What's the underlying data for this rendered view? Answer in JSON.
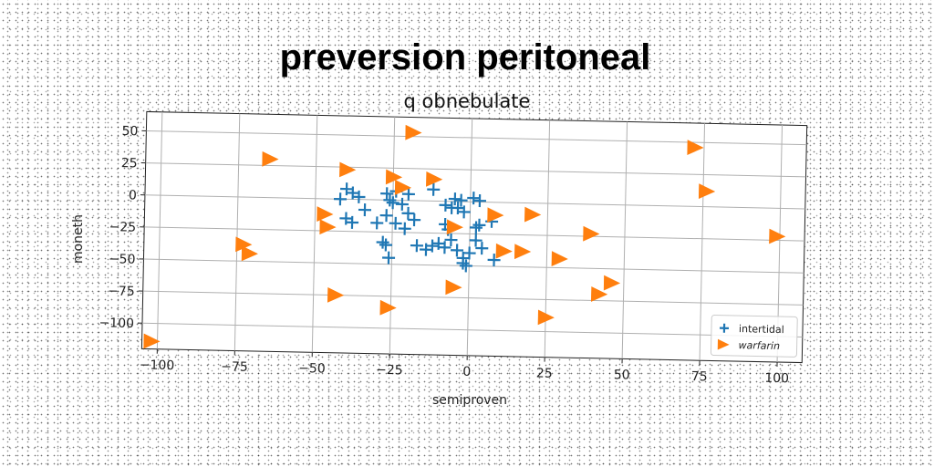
{
  "chart_data": {
    "type": "scatter",
    "title": "preversion peritoneal",
    "subtitle": "q obnebulate",
    "xlabel": "semiproven",
    "ylabel": "moneth",
    "xlim": [
      -105,
      108
    ],
    "ylim": [
      -120,
      65
    ],
    "xticks": [
      -100,
      -75,
      -50,
      -25,
      0,
      25,
      50,
      75,
      100
    ],
    "yticks": [
      50,
      25,
      0,
      -25,
      -50,
      -75,
      -100
    ],
    "grid": true,
    "legend_position": "bottom-right",
    "series": [
      {
        "name": "intertidal",
        "marker": "plus",
        "color": "#1f77b4",
        "points": [
          [
            -40,
            8
          ],
          [
            -38,
            5
          ],
          [
            -42,
            0
          ],
          [
            -36,
            2
          ],
          [
            -34,
            -8
          ],
          [
            -30,
            -18
          ],
          [
            -40,
            -15
          ],
          [
            -38,
            -18
          ],
          [
            -27,
            5
          ],
          [
            -26,
            0
          ],
          [
            -25,
            -2
          ],
          [
            -24,
            7
          ],
          [
            -22,
            -3
          ],
          [
            -20,
            5
          ],
          [
            -27,
            -12
          ],
          [
            -24,
            -18
          ],
          [
            -21,
            -22
          ],
          [
            -28,
            -33
          ],
          [
            -27,
            -35
          ],
          [
            -26,
            -45
          ],
          [
            -17,
            -35
          ],
          [
            -12,
            -35
          ],
          [
            -14,
            -38
          ],
          [
            -10,
            -33
          ],
          [
            -8,
            -36
          ],
          [
            -12,
            9
          ],
          [
            -8,
            -3
          ],
          [
            -6,
            -5
          ],
          [
            -5,
            2
          ],
          [
            -4,
            -5
          ],
          [
            -3,
            1
          ],
          [
            -2,
            -8
          ],
          [
            -8,
            -18
          ],
          [
            -7,
            -22
          ],
          [
            -6,
            -30
          ],
          [
            -4,
            -38
          ],
          [
            -2,
            -44
          ],
          [
            -2,
            -48
          ],
          [
            0,
            -40
          ],
          [
            -1,
            -50
          ],
          [
            1,
            3
          ],
          [
            3,
            1
          ],
          [
            3,
            -18
          ],
          [
            2,
            -20
          ],
          [
            7,
            -15
          ],
          [
            2,
            -30
          ],
          [
            4,
            -36
          ],
          [
            8,
            -45
          ],
          [
            -18,
            -15
          ],
          [
            -20,
            -10
          ]
        ]
      },
      {
        "name": "warfarin",
        "marker": "triangle-right",
        "color": "#ff7f0e",
        "points": [
          [
            -19,
            53
          ],
          [
            72,
            46
          ],
          [
            -65,
            30
          ],
          [
            -40,
            23
          ],
          [
            -25,
            18
          ],
          [
            -12,
            17
          ],
          [
            -22,
            10
          ],
          [
            76,
            12
          ],
          [
            -47,
            -12
          ],
          [
            -46,
            -22
          ],
          [
            8,
            -10
          ],
          [
            20,
            -9
          ],
          [
            -5,
            -20
          ],
          [
            39,
            -23
          ],
          [
            99,
            -22
          ],
          [
            -73,
            -37
          ],
          [
            -71,
            -44
          ],
          [
            11,
            -38
          ],
          [
            17,
            -38
          ],
          [
            29,
            -43
          ],
          [
            -5,
            -67
          ],
          [
            -43,
            -75
          ],
          [
            -26,
            -84
          ],
          [
            46,
            -61
          ],
          [
            42,
            -70
          ],
          [
            25,
            -89
          ],
          [
            -102,
            -114
          ]
        ]
      }
    ]
  }
}
